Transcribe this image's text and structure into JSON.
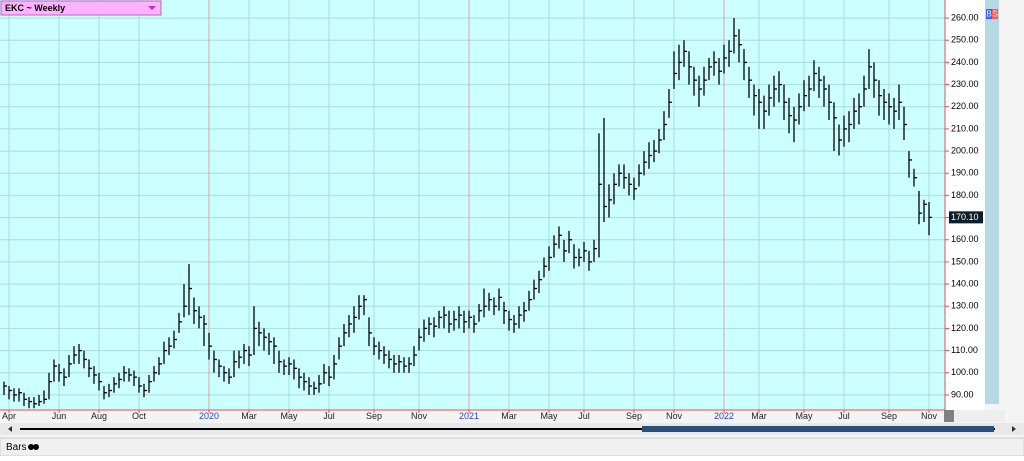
{
  "chart_data": {
    "type": "hlc",
    "symbol_label": "EKC ~ Weekly",
    "buttons": [
      "B",
      "S"
    ],
    "tab": "Bars",
    "last_label": "170.10",
    "color": "#000000",
    "grid": true,
    "high": [
      96,
      94,
      93,
      93,
      91,
      89,
      89,
      90,
      92,
      100,
      106,
      104,
      102,
      108,
      112,
      113,
      110,
      106,
      103,
      100,
      94,
      95,
      98,
      100,
      103,
      102,
      101,
      98,
      95,
      99,
      103,
      107,
      114,
      116,
      119,
      127,
      140,
      149,
      134,
      130,
      126,
      118,
      110,
      106,
      103,
      102,
      110,
      110,
      113,
      112,
      130,
      123,
      120,
      118,
      116,
      110,
      106,
      107,
      106,
      102,
      100,
      98,
      96,
      99,
      104,
      103,
      108,
      116,
      122,
      126,
      130,
      135,
      135,
      125,
      116,
      114,
      112,
      110,
      108,
      108,
      107,
      107,
      112,
      120,
      124,
      125,
      125,
      128,
      130,
      128,
      128,
      130,
      128,
      128,
      126,
      131,
      138,
      136,
      134,
      138,
      132,
      128,
      126,
      130,
      132,
      137,
      142,
      146,
      152,
      157,
      162,
      166,
      160,
      164,
      158,
      156,
      159,
      155,
      160,
      208,
      215,
      185,
      190,
      194,
      194,
      190,
      188,
      194,
      200,
      204,
      205,
      210,
      218,
      228,
      245,
      248,
      250,
      245,
      238,
      234,
      238,
      242,
      245,
      242,
      248,
      250,
      260,
      255,
      246,
      238,
      230,
      228,
      225,
      230,
      234,
      236,
      230,
      224,
      220,
      226,
      232,
      234,
      241,
      238,
      234,
      230,
      222,
      212,
      216,
      218,
      224,
      226,
      234,
      246,
      240,
      232,
      228,
      226,
      224,
      230,
      220,
      200,
      192,
      182,
      178,
      177
    ],
    "low": [
      90,
      88,
      87,
      87,
      85,
      84,
      84,
      85,
      86,
      88,
      96,
      96,
      94,
      98,
      104,
      104,
      102,
      98,
      95,
      92,
      88,
      89,
      91,
      93,
      96,
      96,
      94,
      91,
      89,
      91,
      96,
      99,
      104,
      108,
      111,
      118,
      125,
      126,
      122,
      120,
      112,
      106,
      100,
      98,
      96,
      95,
      98,
      102,
      104,
      103,
      108,
      112,
      110,
      108,
      104,
      100,
      99,
      99,
      97,
      93,
      92,
      90,
      90,
      91,
      95,
      94,
      97,
      106,
      112,
      116,
      118,
      124,
      126,
      112,
      108,
      106,
      104,
      102,
      100,
      100,
      100,
      100,
      103,
      110,
      114,
      117,
      116,
      120,
      120,
      118,
      119,
      120,
      118,
      120,
      118,
      123,
      125,
      128,
      126,
      128,
      122,
      119,
      118,
      120,
      123,
      128,
      133,
      136,
      143,
      146,
      152,
      156,
      150,
      154,
      147,
      148,
      150,
      146,
      150,
      152,
      168,
      170,
      176,
      184,
      183,
      180,
      178,
      184,
      189,
      192,
      195,
      199,
      205,
      215,
      228,
      232,
      238,
      230,
      225,
      220,
      225,
      232,
      234,
      230,
      235,
      238,
      244,
      240,
      232,
      224,
      216,
      210,
      210,
      216,
      220,
      222,
      214,
      208,
      204,
      212,
      218,
      220,
      227,
      224,
      220,
      214,
      200,
      198,
      202,
      204,
      210,
      212,
      220,
      228,
      224,
      216,
      214,
      212,
      210,
      214,
      205,
      188,
      184,
      167,
      168,
      162
    ],
    "close": [
      94,
      92,
      90,
      91,
      88,
      87,
      86,
      87,
      88,
      96,
      103,
      100,
      98,
      104,
      108,
      110,
      106,
      102,
      99,
      96,
      91,
      92,
      95,
      97,
      100,
      99,
      98,
      94,
      92,
      96,
      100,
      104,
      110,
      112,
      115,
      123,
      130,
      138,
      128,
      125,
      122,
      112,
      106,
      103,
      100,
      98,
      105,
      107,
      110,
      108,
      120,
      118,
      116,
      114,
      112,
      105,
      103,
      104,
      102,
      98,
      96,
      94,
      93,
      95,
      100,
      98,
      104,
      112,
      118,
      122,
      125,
      130,
      133,
      118,
      112,
      110,
      108,
      106,
      104,
      105,
      103,
      104,
      108,
      116,
      120,
      122,
      121,
      125,
      126,
      122,
      124,
      126,
      123,
      125,
      122,
      128,
      130,
      133,
      130,
      134,
      128,
      124,
      122,
      126,
      128,
      133,
      138,
      142,
      148,
      152,
      158,
      162,
      155,
      160,
      152,
      152,
      155,
      150,
      156,
      185,
      175,
      178,
      185,
      190,
      188,
      185,
      183,
      190,
      195,
      198,
      200,
      205,
      212,
      222,
      235,
      240,
      245,
      238,
      232,
      228,
      232,
      238,
      240,
      236,
      242,
      245,
      252,
      248,
      240,
      232,
      225,
      222,
      218,
      224,
      228,
      230,
      222,
      216,
      214,
      220,
      225,
      228,
      235,
      232,
      228,
      222,
      215,
      205,
      210,
      212,
      218,
      220,
      228,
      238,
      232,
      225,
      222,
      220,
      218,
      222,
      212,
      196,
      188,
      172,
      176,
      170.1
    ],
    "xlim": [
      -0.4,
      188.2
    ],
    "xticks": [
      {
        "value": 1,
        "label": "Apr"
      },
      {
        "value": 11,
        "label": "Jun"
      },
      {
        "value": 19,
        "label": "Aug"
      },
      {
        "value": 27,
        "label": "Oct"
      },
      {
        "value": 41,
        "label": "2020"
      },
      {
        "value": 49,
        "label": "Mar"
      },
      {
        "value": 57,
        "label": "May"
      },
      {
        "value": 65,
        "label": "Jul"
      },
      {
        "value": 74,
        "label": "Sep"
      },
      {
        "value": 83,
        "label": "Nov"
      },
      {
        "value": 93,
        "label": "2021"
      },
      {
        "value": 101,
        "label": "Mar"
      },
      {
        "value": 109,
        "label": "May"
      },
      {
        "value": 116,
        "label": "Jul"
      },
      {
        "value": 126,
        "label": "Sep"
      },
      {
        "value": 134,
        "label": "Nov"
      },
      {
        "value": 144,
        "label": "2022"
      },
      {
        "value": 151,
        "label": "Mar"
      },
      {
        "value": 160,
        "label": "May"
      },
      {
        "value": 168,
        "label": "Jul"
      },
      {
        "value": 177,
        "label": "Sep"
      },
      {
        "value": 185,
        "label": "Nov"
      }
    ],
    "ylim": [
      83.2,
      266.8
    ],
    "yticks": [
      {
        "value": 90,
        "label": "90.00"
      },
      {
        "value": 100,
        "label": "100.00"
      },
      {
        "value": 110,
        "label": "110.00"
      },
      {
        "value": 120,
        "label": "120.00"
      },
      {
        "value": 130,
        "label": "130.00"
      },
      {
        "value": 140,
        "label": "140.00"
      },
      {
        "value": 150,
        "label": "150.00"
      },
      {
        "value": 160,
        "label": "160.00"
      },
      {
        "value": 170,
        "label": "170.00"
      },
      {
        "value": 180,
        "label": "180.00"
      },
      {
        "value": 190,
        "label": "190.00"
      },
      {
        "value": 200,
        "label": "200.00"
      },
      {
        "value": 210,
        "label": "210.00"
      },
      {
        "value": 220,
        "label": "220.00"
      },
      {
        "value": 230,
        "label": "230.00"
      },
      {
        "value": 240,
        "label": "240.00"
      },
      {
        "value": 250,
        "label": "250.00"
      },
      {
        "value": 260,
        "label": "260.00"
      }
    ]
  }
}
